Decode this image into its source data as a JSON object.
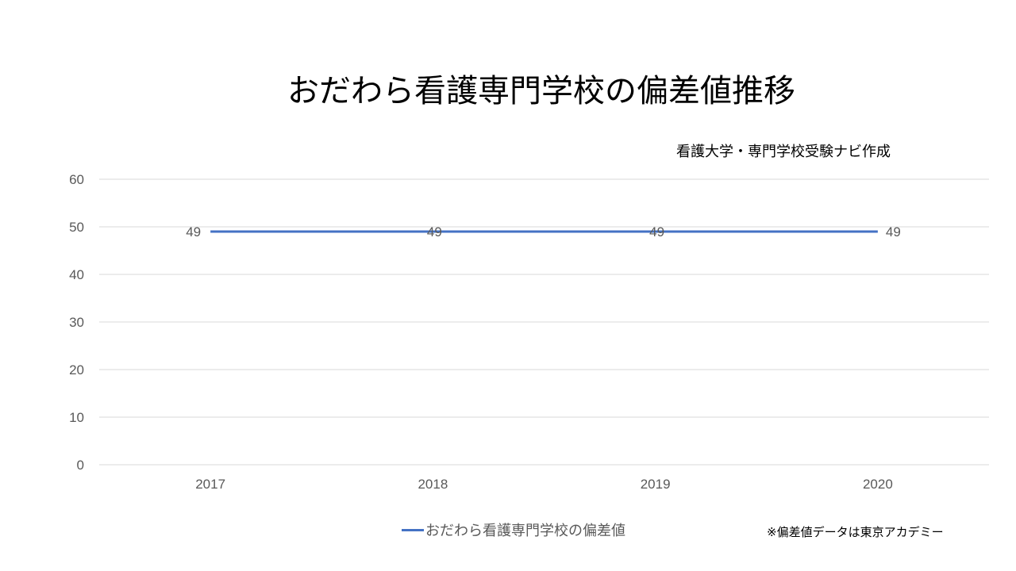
{
  "chart_data": {
    "type": "line",
    "title": "おだわら看護専門学校の偏差値推移",
    "subtitle": "看護大学・専門学校受験ナビ作成",
    "note": "※偏差値データは東京アカデミー",
    "categories": [
      "2017",
      "2018",
      "2019",
      "2020"
    ],
    "series": [
      {
        "name": "おだわら看護専門学校の偏差値",
        "values": [
          49,
          49,
          49,
          49
        ],
        "color": "#4472c4"
      }
    ],
    "data_labels": true,
    "ylim": [
      0,
      60
    ],
    "yticks": [
      0,
      10,
      20,
      30,
      40,
      50,
      60
    ],
    "grid": true,
    "legend": "bottom"
  }
}
